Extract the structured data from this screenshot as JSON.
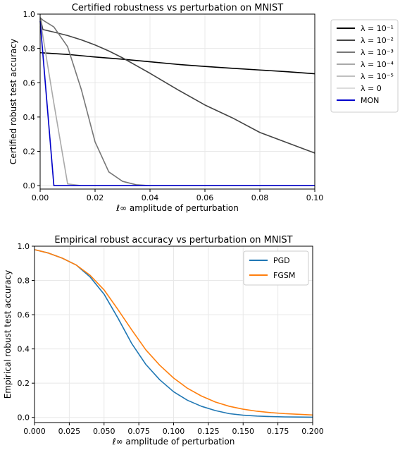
{
  "chart_data": [
    {
      "type": "line",
      "title": "Certified robustness vs perturbation on MNIST",
      "xlabel": "ℓ∞ amplitude of perturbation",
      "ylabel": "Certified robust test accuracy",
      "xlim": [
        0,
        0.1
      ],
      "ylim": [
        -0.02,
        1.0
      ],
      "xticks": [
        "0.00",
        "0.02",
        "0.04",
        "0.06",
        "0.08",
        "0.10"
      ],
      "yticks": [
        "0.0",
        "0.2",
        "0.4",
        "0.6",
        "0.8",
        "1.0"
      ],
      "grid": true,
      "legend_position": "outside-right",
      "series": [
        {
          "name": "λ = 10⁻¹",
          "color": "#000000",
          "x": [
            0,
            0.01,
            0.02,
            0.03,
            0.04,
            0.05,
            0.06,
            0.07,
            0.08,
            0.09,
            0.1
          ],
          "values": [
            0.775,
            0.765,
            0.75,
            0.737,
            0.722,
            0.707,
            0.695,
            0.684,
            0.674,
            0.664,
            0.652
          ]
        },
        {
          "name": "λ = 10⁻²",
          "color": "#444444",
          "x": [
            0,
            0.001,
            0.005,
            0.01,
            0.015,
            0.02,
            0.025,
            0.03,
            0.035,
            0.04,
            0.05,
            0.06,
            0.07,
            0.08,
            0.09,
            0.1
          ],
          "values": [
            0.98,
            0.91,
            0.895,
            0.875,
            0.85,
            0.82,
            0.785,
            0.745,
            0.7,
            0.655,
            0.56,
            0.47,
            0.395,
            0.31,
            0.25,
            0.19
          ]
        },
        {
          "name": "λ = 10⁻³",
          "color": "#777777",
          "x": [
            0,
            0.001,
            0.005,
            0.01,
            0.015,
            0.02,
            0.025,
            0.03,
            0.035,
            0.04,
            0.05,
            0.1
          ],
          "values": [
            0.98,
            0.965,
            0.925,
            0.81,
            0.56,
            0.255,
            0.08,
            0.025,
            0.005,
            0.0,
            0.0,
            0.0
          ]
        },
        {
          "name": "λ = 10⁻⁴",
          "color": "#a9a9a9",
          "x": [
            0,
            0.005,
            0.01,
            0.015,
            0.02,
            0.1
          ],
          "values": [
            0.97,
            0.48,
            0.01,
            0.0,
            0.0,
            0.0
          ]
        },
        {
          "name": "λ = 10⁻⁵",
          "color": "#c0c0c0",
          "x": [
            0,
            0.005,
            0.1
          ],
          "values": [
            0.95,
            0.0,
            0.0
          ]
        },
        {
          "name": "λ = 0",
          "color": "#dcdcdc",
          "x": [
            0,
            0.005,
            0.1
          ],
          "values": [
            0.93,
            0.0,
            0.0
          ]
        },
        {
          "name": "MON",
          "color": "#0000cc",
          "x": [
            0,
            0.005,
            0.1
          ],
          "values": [
            0.96,
            0.0,
            0.0
          ]
        }
      ]
    },
    {
      "type": "line",
      "title": "Empirical robust accuracy vs perturbation on MNIST",
      "xlabel": "ℓ∞ amplitude of perturbation",
      "ylabel": "Empirical robust test accuracy",
      "xlim": [
        0,
        0.2
      ],
      "ylim": [
        -0.03,
        1.0
      ],
      "xticks": [
        "0.000",
        "0.025",
        "0.050",
        "0.075",
        "0.100",
        "0.125",
        "0.150",
        "0.175",
        "0.200"
      ],
      "yticks": [
        "0.0",
        "0.2",
        "0.4",
        "0.6",
        "0.8",
        "1.0"
      ],
      "grid": true,
      "legend_position": "top-right",
      "series": [
        {
          "name": "PGD",
          "color": "#1f77b4",
          "x": [
            0,
            0.01,
            0.02,
            0.03,
            0.04,
            0.05,
            0.06,
            0.07,
            0.08,
            0.09,
            0.1,
            0.11,
            0.12,
            0.13,
            0.14,
            0.15,
            0.16,
            0.17,
            0.18,
            0.19,
            0.2
          ],
          "values": [
            0.98,
            0.96,
            0.93,
            0.89,
            0.82,
            0.72,
            0.58,
            0.43,
            0.31,
            0.22,
            0.15,
            0.1,
            0.065,
            0.04,
            0.022,
            0.013,
            0.008,
            0.005,
            0.003,
            0.002,
            0.001
          ]
        },
        {
          "name": "FGSM",
          "color": "#ff7f0e",
          "x": [
            0,
            0.01,
            0.02,
            0.03,
            0.04,
            0.05,
            0.06,
            0.07,
            0.08,
            0.09,
            0.1,
            0.11,
            0.12,
            0.13,
            0.14,
            0.15,
            0.16,
            0.17,
            0.18,
            0.19,
            0.2
          ],
          "values": [
            0.98,
            0.96,
            0.93,
            0.89,
            0.83,
            0.745,
            0.63,
            0.51,
            0.395,
            0.305,
            0.23,
            0.17,
            0.125,
            0.09,
            0.065,
            0.048,
            0.036,
            0.028,
            0.022,
            0.018,
            0.014
          ]
        }
      ]
    }
  ]
}
